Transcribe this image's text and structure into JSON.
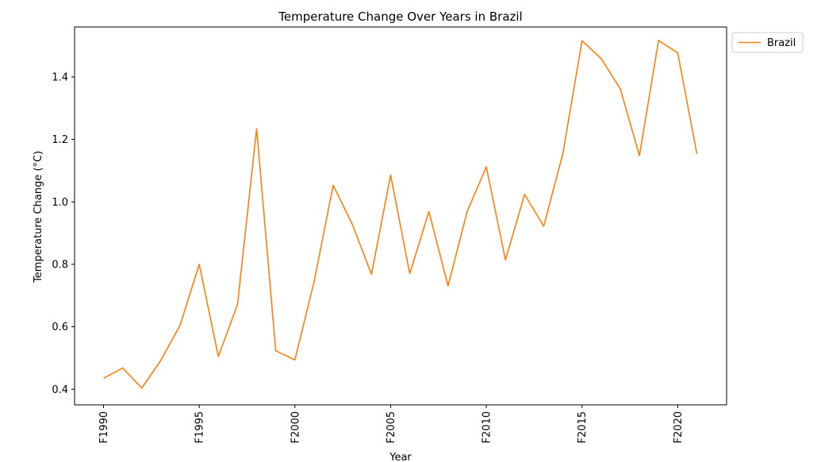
{
  "chart_data": {
    "type": "line",
    "title": "Temperature Change Over Years in Brazil",
    "xlabel": "Year",
    "ylabel": "Temperature Change (°C)",
    "x": [
      "F1990",
      "F1991",
      "F1992",
      "F1993",
      "F1994",
      "F1995",
      "F1996",
      "F1997",
      "F1998",
      "F1999",
      "F2000",
      "F2001",
      "F2002",
      "F2003",
      "F2004",
      "F2005",
      "F2006",
      "F2007",
      "F2008",
      "F2009",
      "F2010",
      "F2011",
      "F2012",
      "F2013",
      "F2014",
      "F2015",
      "F2016",
      "F2017",
      "F2018",
      "F2019",
      "F2020",
      "F2021"
    ],
    "x_tick_labels": [
      "F1990",
      "F1995",
      "F2000",
      "F2005",
      "F2010",
      "F2015",
      "F2020"
    ],
    "y_ticks": [
      0.4,
      0.6,
      0.8,
      1.0,
      1.2,
      1.4
    ],
    "y_tick_labels": [
      "0.4",
      "0.6",
      "0.8",
      "1.0",
      "1.2",
      "1.4"
    ],
    "ylim": [
      0.35,
      1.56
    ],
    "grid": false,
    "legend_position": "outside-top-right",
    "series": [
      {
        "name": "Brazil",
        "color": "#ff7f0e",
        "values": [
          0.435,
          0.468,
          0.404,
          0.493,
          0.605,
          0.8,
          0.505,
          0.671,
          1.234,
          0.523,
          0.494,
          0.744,
          1.053,
          0.928,
          0.768,
          1.086,
          0.77,
          0.969,
          0.731,
          0.969,
          1.112,
          0.814,
          1.024,
          0.922,
          1.155,
          1.516,
          1.459,
          1.362,
          1.148,
          1.517,
          1.477,
          1.154
        ]
      }
    ]
  }
}
